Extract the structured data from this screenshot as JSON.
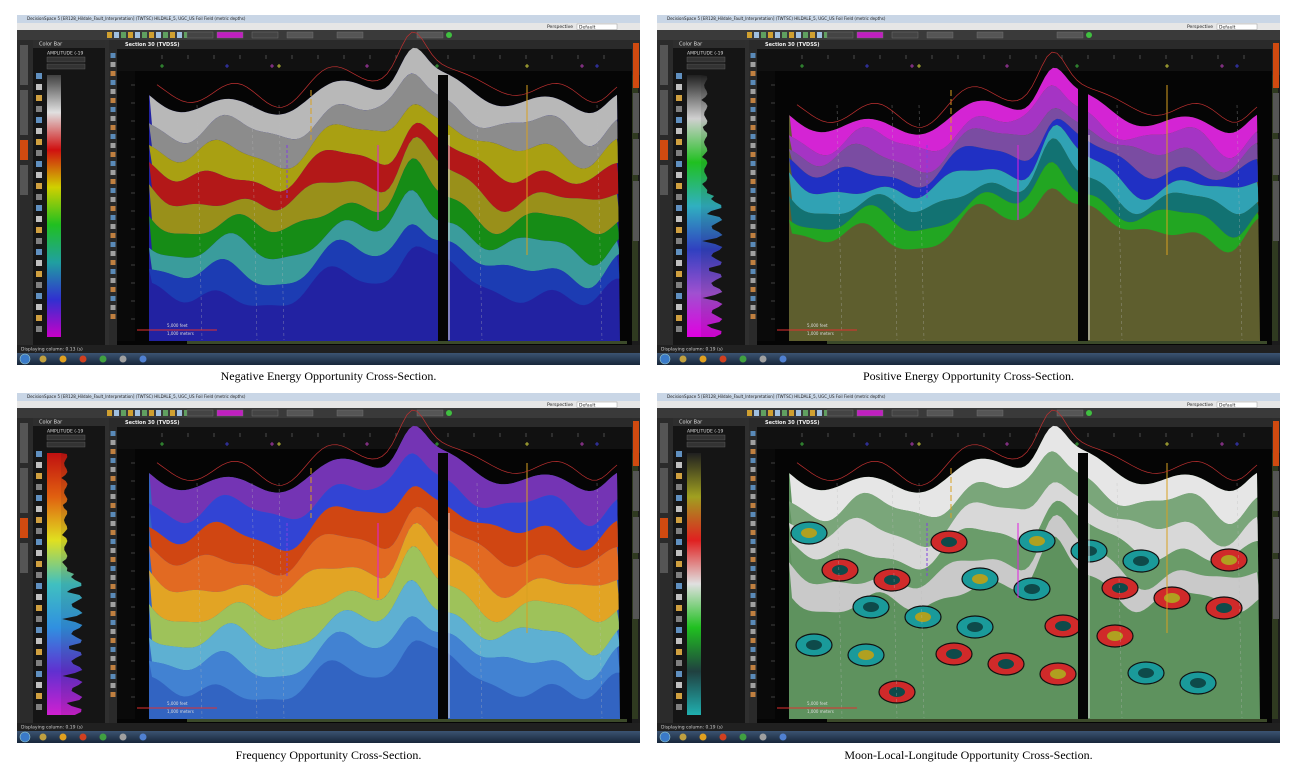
{
  "panels": [
    {
      "caption": "Negative Energy Opportunity Cross-Section.",
      "window_title": "DecisionSpace 5 [ER128_Hildale_Fault_Interpretation] (TWTSC) HILDALE_5, UGC_US Foil Field (metric depths)",
      "perspective": "Perspective",
      "perspective_value": "Default",
      "section_title": "Section 30 (TVDSS)",
      "color_bar_title": "Color Bar",
      "attribute": "AMPLITUDE (-19",
      "scale_feet": "5,000 feet",
      "scale_meters": "1,000 meters",
      "status": "Displaying column: 0.13 (s)"
    },
    {
      "caption": "Positive Energy Opportunity Cross-Section.",
      "window_title": "DecisionSpace 5 [ER128_Hildale_Fault_Interpretation] (TWTSC) HILDALE_5, UGC_US Foil Field (metric depths)",
      "perspective": "Perspective",
      "perspective_value": "Default",
      "section_title": "Section 30 (TVDSS)",
      "color_bar_title": "Color Bar",
      "attribute": "AMPLITUDE (-19",
      "scale_feet": "5,000 feet",
      "scale_meters": "1,000 meters",
      "status": "Displaying column: 0.19 (s)"
    },
    {
      "caption": "Frequency Opportunity Cross-Section.",
      "window_title": "DecisionSpace 5 [ER128_Hildale_Fault_Interpretation] (TWTSC) HILDALE_5, UGC_US Foil Field (metric depths)",
      "perspective": "Perspective",
      "perspective_value": "Default",
      "section_title": "Section 30 (TVDSS)",
      "color_bar_title": "Color Bar",
      "attribute": "AMPLITUDE (-19",
      "scale_feet": "5,000 feet",
      "scale_meters": "1,000 meters",
      "status": "Displaying column: 0.19 (s)"
    },
    {
      "caption": "Moon-Local-Longitude Opportunity Cross-Section.",
      "window_title": "DecisionSpace 5 [ER128_Hildale_Fault_Interpretation] (TWTSC) HILDALE_5, UGC_US Foil Field (metric depths)",
      "perspective": "Perspective",
      "perspective_value": "Default",
      "section_title": "Section 30 (TVDSS)",
      "color_bar_title": "Color Bar",
      "attribute": "AMPLITUDE (-19",
      "scale_feet": "5,000 feet",
      "scale_meters": "1,000 meters",
      "status": "Displaying column: 0.19 (s)"
    }
  ]
}
